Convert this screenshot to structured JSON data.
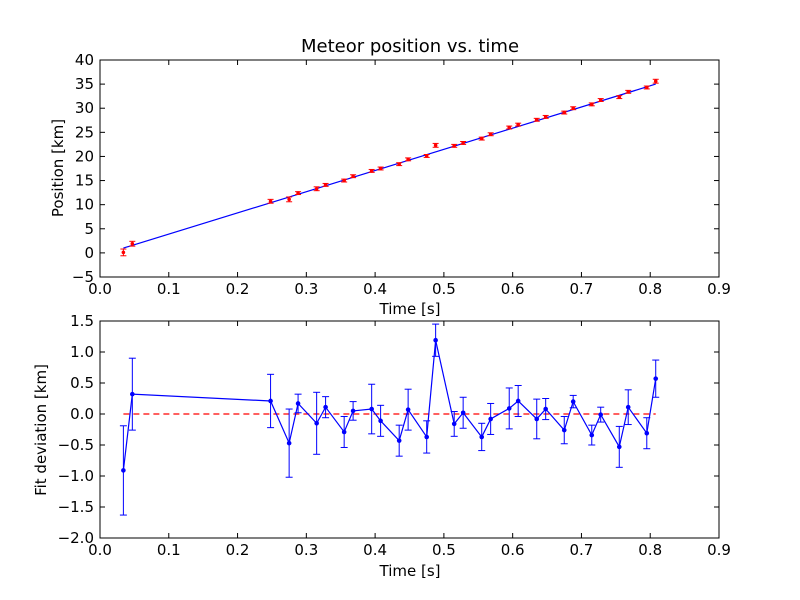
{
  "chart_data": [
    {
      "type": "scatter",
      "title": "Meteor position vs. time",
      "xlabel": "Time [s]",
      "ylabel": "Position [km]",
      "xlim": [
        0.0,
        0.9
      ],
      "ylim": [
        -5,
        40
      ],
      "xticks": [
        "0.0",
        "0.1",
        "0.2",
        "0.3",
        "0.4",
        "0.5",
        "0.6",
        "0.7",
        "0.8",
        "0.9"
      ],
      "yticks": [
        "−5",
        "0",
        "5",
        "10",
        "15",
        "20",
        "25",
        "30",
        "35",
        "40"
      ],
      "grid": false,
      "colors": {
        "points": "#ff0000",
        "fit": "#0000ff"
      },
      "series": [
        {
          "kind": "points-with-errorbars",
          "x": [
            0.034,
            0.047,
            0.248,
            0.275,
            0.288,
            0.315,
            0.328,
            0.355,
            0.368,
            0.395,
            0.408,
            0.435,
            0.448,
            0.475,
            0.488,
            0.515,
            0.528,
            0.555,
            0.568,
            0.595,
            0.608,
            0.635,
            0.648,
            0.675,
            0.688,
            0.715,
            0.728,
            0.755,
            0.768,
            0.795,
            0.808
          ],
          "y": [
            0.1,
            1.9,
            10.7,
            11.1,
            12.4,
            13.3,
            14.1,
            15.0,
            15.9,
            17.0,
            17.5,
            18.4,
            19.4,
            20.1,
            22.3,
            22.2,
            22.8,
            23.7,
            24.6,
            26.0,
            26.6,
            27.6,
            28.2,
            29.1,
            30.0,
            30.8,
            31.7,
            32.3,
            33.4,
            34.3,
            35.6
          ],
          "err": [
            0.7,
            0.5,
            0.4,
            0.5,
            0.3,
            0.4,
            0.3,
            0.3,
            0.3,
            0.3,
            0.3,
            0.3,
            0.3,
            0.3,
            0.4,
            0.3,
            0.3,
            0.3,
            0.3,
            0.3,
            0.3,
            0.3,
            0.3,
            0.3,
            0.3,
            0.3,
            0.3,
            0.3,
            0.3,
            0.3,
            0.4
          ]
        },
        {
          "kind": "fit-line",
          "x": [
            0.034,
            0.808
          ],
          "y": [
            1.0,
            35.0
          ]
        }
      ]
    },
    {
      "type": "line",
      "xlabel": "Time [s]",
      "ylabel": "Fit deviation [km]",
      "xlim": [
        0.0,
        0.9
      ],
      "ylim": [
        -2.0,
        1.5
      ],
      "xticks": [
        "0.0",
        "0.1",
        "0.2",
        "0.3",
        "0.4",
        "0.5",
        "0.6",
        "0.7",
        "0.8",
        "0.9"
      ],
      "yticks": [
        "−2.0",
        "−1.5",
        "−1.0",
        "−0.5",
        "0.0",
        "0.5",
        "1.0",
        "1.5"
      ],
      "grid": false,
      "colors": {
        "series": "#0000ff",
        "reference": "#ff0000"
      },
      "reference_line": {
        "y": 0.0,
        "x": [
          0.034,
          0.808
        ],
        "style": "dashed"
      },
      "series": [
        {
          "x": [
            0.034,
            0.047,
            0.248,
            0.275,
            0.288,
            0.315,
            0.328,
            0.355,
            0.368,
            0.395,
            0.408,
            0.435,
            0.448,
            0.475,
            0.488,
            0.515,
            0.528,
            0.555,
            0.568,
            0.595,
            0.608,
            0.635,
            0.648,
            0.675,
            0.688,
            0.715,
            0.728,
            0.755,
            0.768,
            0.795,
            0.808
          ],
          "y": [
            -0.91,
            0.32,
            0.21,
            -0.47,
            0.17,
            -0.15,
            0.11,
            -0.29,
            0.05,
            0.08,
            -0.11,
            -0.43,
            0.07,
            -0.37,
            1.19,
            -0.16,
            0.02,
            -0.37,
            -0.08,
            0.09,
            0.21,
            -0.08,
            0.08,
            -0.26,
            0.2,
            -0.34,
            -0.01,
            -0.53,
            0.11,
            -0.31,
            0.57
          ],
          "err": [
            0.72,
            0.58,
            0.43,
            0.55,
            0.15,
            0.5,
            0.17,
            0.25,
            0.15,
            0.4,
            0.25,
            0.25,
            0.33,
            0.26,
            0.26,
            0.2,
            0.25,
            0.22,
            0.25,
            0.33,
            0.25,
            0.32,
            0.17,
            0.22,
            0.1,
            0.16,
            0.12,
            0.33,
            0.28,
            0.25,
            0.3
          ]
        }
      ]
    }
  ]
}
